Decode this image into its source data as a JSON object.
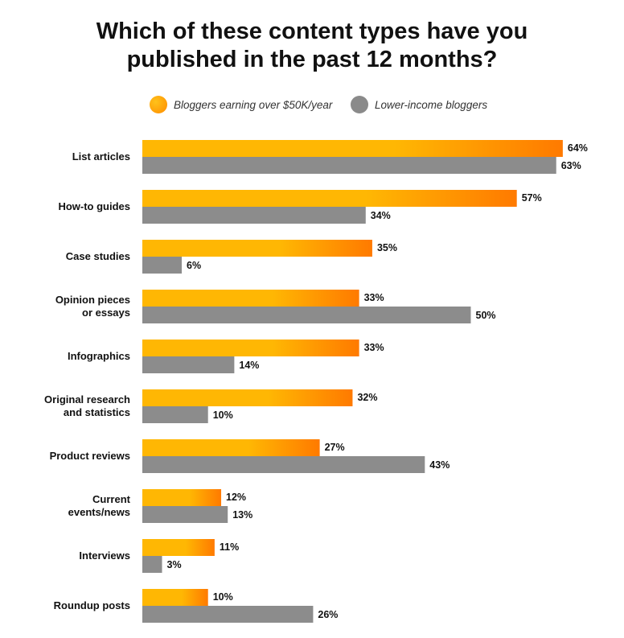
{
  "title_line1": "Which of these content types have you",
  "title_line2": "published in the past 12 months?",
  "legend": {
    "high": "Bloggers earning over $50K/year",
    "low": "Lower-income bloggers"
  },
  "colors": {
    "high_start": "#ffb703",
    "high_end": "#ff7a00",
    "low": "#8c8c8c"
  },
  "chart_data": {
    "type": "bar",
    "orientation": "horizontal",
    "title": "Which of these content types have you published in the past 12 months?",
    "categories": [
      [
        "List articles"
      ],
      [
        "How-to guides"
      ],
      [
        "Case studies"
      ],
      [
        "Opinion pieces",
        "or essays"
      ],
      [
        "Infographics"
      ],
      [
        "Original research",
        "and statistics"
      ],
      [
        "Product reviews"
      ],
      [
        "Current",
        "events/news"
      ],
      [
        "Interviews"
      ],
      [
        "Roundup posts"
      ]
    ],
    "series": [
      {
        "name": "Bloggers earning over $50K/year",
        "values": [
          64,
          57,
          35,
          33,
          33,
          32,
          27,
          12,
          11,
          10
        ]
      },
      {
        "name": "Lower-income bloggers",
        "values": [
          63,
          34,
          6,
          50,
          14,
          10,
          43,
          13,
          3,
          26
        ]
      }
    ],
    "unit": "%",
    "legend_position": "top",
    "grid": false
  }
}
